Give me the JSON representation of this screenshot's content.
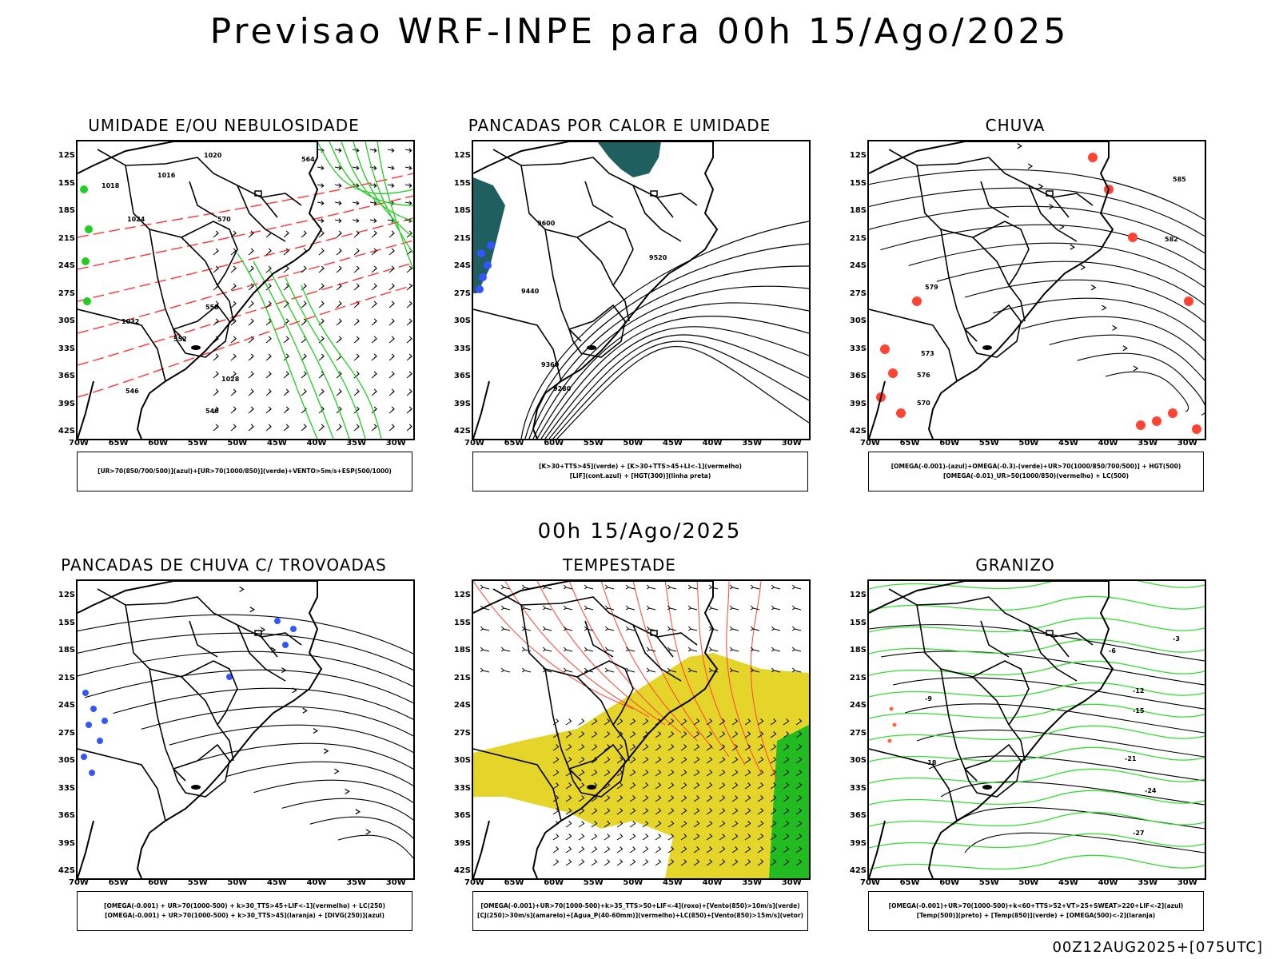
{
  "title": "Previsao WRF-INPE  para 00h 15/Ago/2025",
  "mid_title": "00h 15/Ago/2025",
  "footer": "00Z12AUG2025+[075UTC]",
  "lat_labels": [
    "12S",
    "15S",
    "18S",
    "21S",
    "24S",
    "27S",
    "30S",
    "33S",
    "36S",
    "39S",
    "42S"
  ],
  "lon_labels": [
    "70W",
    "65W",
    "60W",
    "55W",
    "50W",
    "45W",
    "40W",
    "35W",
    "30W"
  ],
  "panels": [
    {
      "title": "UMIDADE E/OU NEBULOSIDADE",
      "legend": [
        "[UR>70(850/700/500)](azul)+[UR>70(1000/850)](verde)+VENTO>5m/s+ESP(500/1000)"
      ],
      "contour_labels": [
        "1016",
        "1018",
        "1020",
        "1024",
        "1028",
        "1032",
        "564",
        "570",
        "558",
        "552",
        "546",
        "540"
      ]
    },
    {
      "title": "PANCADAS POR CALOR E UMIDADE",
      "legend": [
        "[K>30+TTS>45](verde) + [K>30+TTS>45+LI<-1](vermelho)",
        "[LIF](cont.azul) + [HGT(300)](linha preta)"
      ],
      "contour_labels": [
        "9600",
        "9520",
        "9440",
        "9360",
        "9280"
      ]
    },
    {
      "title": "CHUVA",
      "legend": [
        "[OMEGA(-0.001)-(azul)+OMEGA(-0.3)-(verde)+UR>70(1000/850/700/500)] + HGT(500)",
        "[OMEGA(-0.01)_UR>50(1000/850)(vermelho) + LC(500)"
      ],
      "contour_labels": [
        "585",
        "582",
        "579",
        "576",
        "573",
        "570"
      ]
    },
    {
      "title": "PANCADAS DE CHUVA C/ TROVOADAS",
      "legend": [
        "[OMEGA(-0.001) + UR>70(1000-500) + k>30_TTS>45+LIF<-1](vermelho) + LC(250)",
        "[OMEGA(-0.001) + UR>70(1000-500) + k>30_TTS>45](laranja) + [DIVG(250)](azul)"
      ],
      "contour_labels": []
    },
    {
      "title": "TEMPESTADE",
      "legend": [
        "[OMEGA(-0.001)+UR>70(1000-500)+k>35_TTS>50+LIF<-4](roxo)+[Vento(850)>10m/s](verde)",
        "[CJ(250)>30m/s](amarelo)+[Agua_P(40-60mm)](vermelho)+LC(850)+[Vento(850)>15m/s](vetor)"
      ],
      "contour_labels": []
    },
    {
      "title": "GRANIZO",
      "legend": [
        "[OMEGA(-0.001)+UR>70(1000-500)+k<60+TTS>52+VT>25+SWEAT>220+LIF<-2](azul)",
        "[Temp(500)](preto) + [Temp(850)](verde) + [OMEGA(500)<-2](laranja)"
      ],
      "contour_labels": [
        "-3",
        "-6",
        "-9",
        "-12",
        "-15",
        "-18",
        "-21",
        "-24",
        "-27"
      ]
    }
  ]
}
